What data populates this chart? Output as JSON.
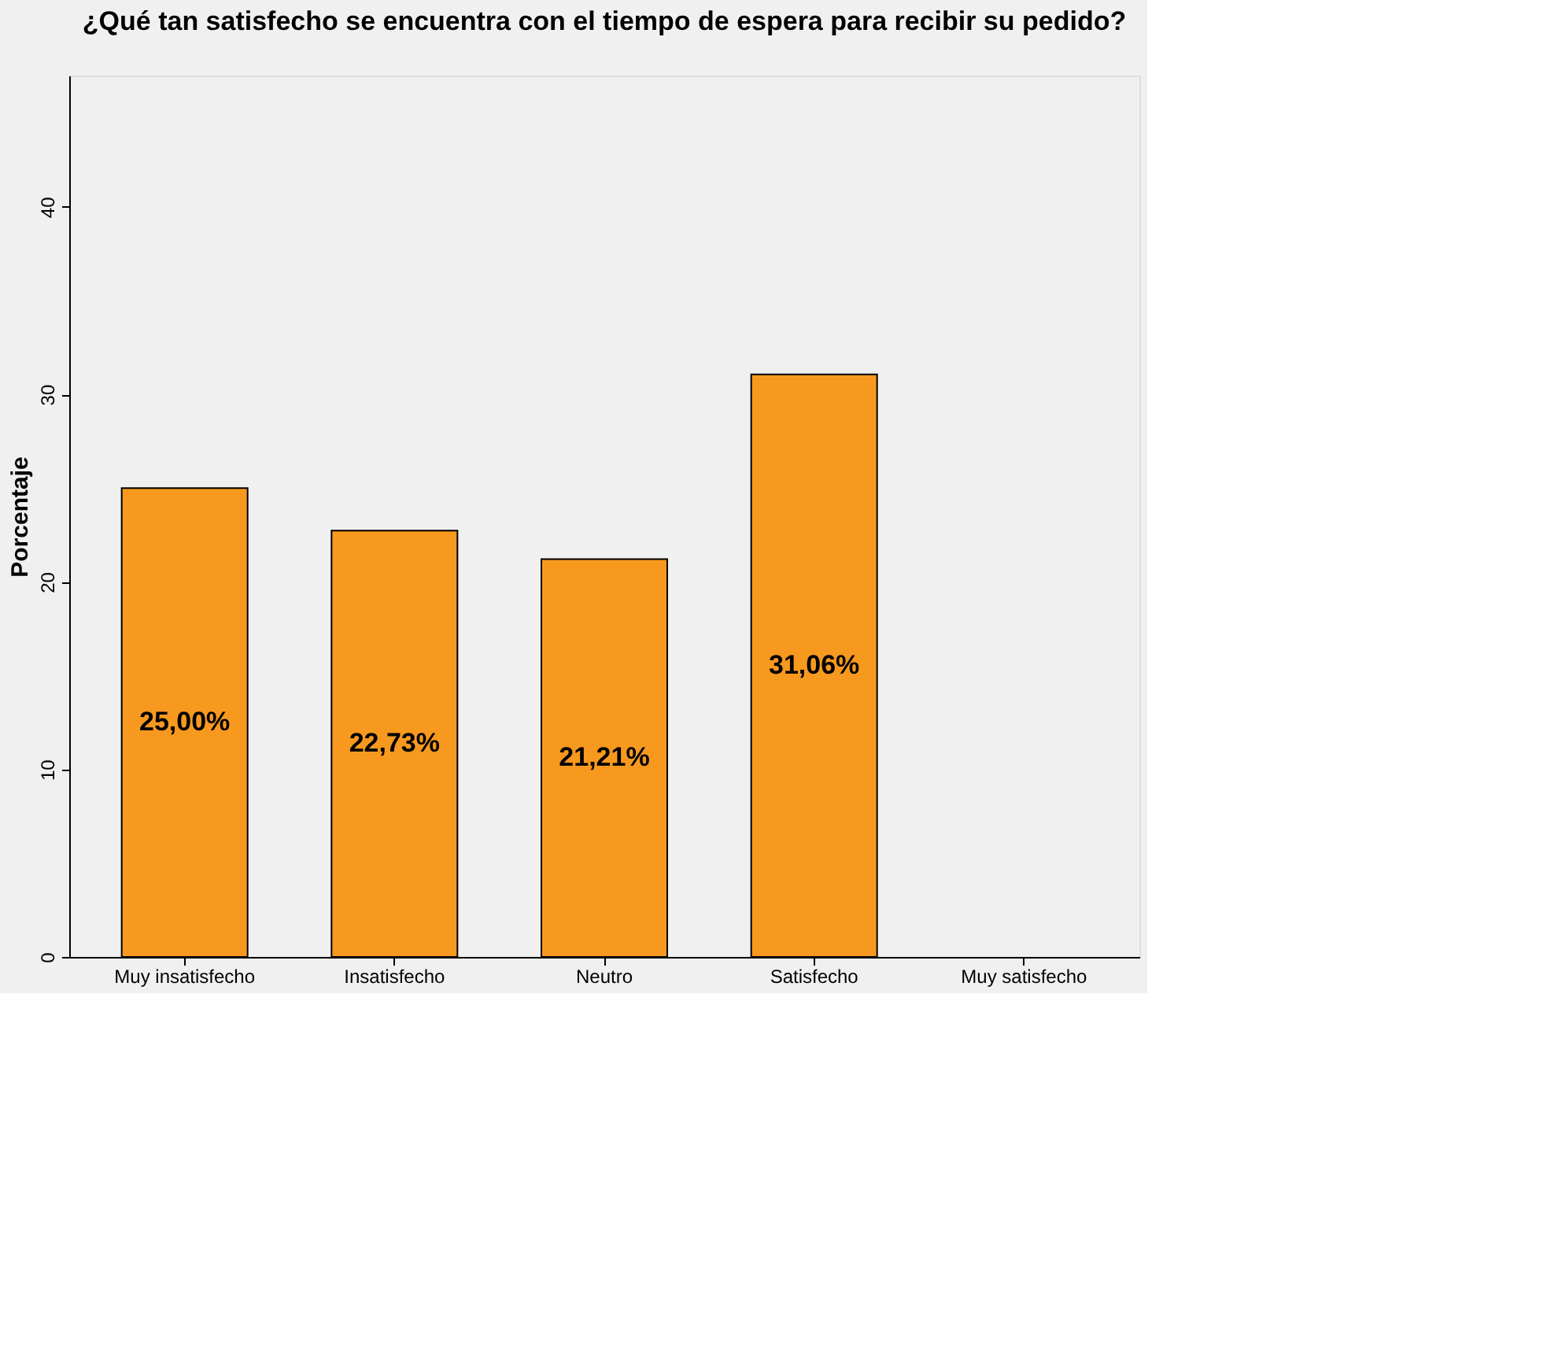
{
  "chart_data": {
    "type": "bar",
    "title": "¿Qué tan satisfecho se encuentra con el tiempo de espera para recibir su pedido?",
    "ylabel": "Porcentaje",
    "categories": [
      "Muy insatisfecho",
      "Insatisfecho",
      "Neutro",
      "Satisfecho",
      "Muy satisfecho"
    ],
    "values": [
      25.0,
      22.73,
      21.21,
      31.06,
      null
    ],
    "value_labels": [
      "25,00%",
      "22,73%",
      "21,21%",
      "31,06%",
      null
    ],
    "color": "#f7991f",
    "ylim": [
      0,
      47
    ],
    "yticks": [
      0,
      10,
      20,
      30,
      40
    ],
    "grid": false
  }
}
